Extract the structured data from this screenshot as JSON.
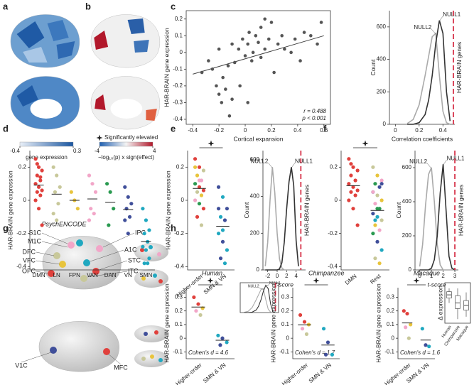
{
  "panels": [
    "a",
    "b",
    "c",
    "d",
    "e",
    "f",
    "g",
    "h"
  ],
  "colorbars": [
    {
      "ticks": [
        -0.4,
        0.3
      ],
      "label": "gene expression"
    },
    {
      "ticks": [
        -4,
        4
      ],
      "label": "−log₁₀(p) x sign(effect)"
    }
  ],
  "g": {
    "title": "PsychENCODE",
    "regions": [
      "S1C",
      "M1C",
      "DFC",
      "VFC",
      "OFC",
      "IPC",
      "A1C",
      "STC",
      "ITC",
      "V1C",
      "MFC"
    ]
  },
  "chart_data": [
    {
      "type": "scatter",
      "xlabel": "Cortical expansion",
      "ylabel": "HAR-BRAIN gene expression",
      "color": "#555555",
      "x": [
        -0.33,
        -0.28,
        -0.25,
        -0.22,
        -0.2,
        -0.2,
        -0.18,
        -0.17,
        -0.15,
        -0.13,
        -0.12,
        -0.1,
        -0.08,
        -0.05,
        -0.04,
        -0.02,
        0,
        0.02,
        0.03,
        0.05,
        0.06,
        0.08,
        0.1,
        0.12,
        0.12,
        0.15,
        0.18,
        0.2,
        0.22,
        0.25,
        0.28,
        0.3,
        0.35,
        0.38,
        0.42,
        0.45,
        0.5,
        0.55,
        0.58,
        0.02,
        -0.1,
        0.15
      ],
      "values": [
        -0.12,
        -0.05,
        -0.1,
        -0.2,
        0.02,
        -0.25,
        -0.3,
        -0.15,
        -0.22,
        -0.08,
        -0.38,
        0.05,
        -0.06,
        0.02,
        -0.2,
        0.08,
        -0.02,
        0.05,
        0.12,
        -0.05,
        0,
        0.1,
        0.06,
        -0.03,
        0.15,
        0.02,
        0.08,
        0.18,
        -0.12,
        0.05,
        0.1,
        0.02,
        0,
        0.08,
        -0.05,
        0.12,
        0.1,
        0.05,
        0.18,
        -0.3,
        -0.28,
        0.2
      ],
      "xlim": [
        -0.45,
        0.65
      ],
      "xticks": [
        -0.4,
        -0.2,
        0,
        0.2,
        0.4,
        0.6
      ],
      "ylim": [
        -0.43,
        0.25
      ],
      "yticks": [
        -0.4,
        -0.3,
        -0.2,
        -0.1,
        0,
        0.1,
        0.2
      ],
      "frame": true,
      "trend": {
        "x": [
          -0.4,
          0.6
        ],
        "values": [
          -0.13,
          0.1
        ]
      },
      "annotations": [
        "r = 0.488",
        "p < 0.001"
      ],
      "annotation_position": "lower right"
    },
    {
      "type": "line",
      "xlabel": "Correlation coefficients",
      "ylabel": "Count",
      "x": [
        0.1,
        0.15,
        0.2,
        0.25,
        0.28,
        0.31,
        0.34,
        0.37,
        0.4,
        0.43,
        0.46
      ],
      "series": [
        {
          "name": "NULL2",
          "color": "#aaaaaa",
          "values": [
            5,
            30,
            120,
            300,
            420,
            540,
            560,
            300,
            80,
            10,
            0
          ]
        },
        {
          "name": "NULL1",
          "color": "#333333",
          "values": [
            0,
            0,
            10,
            60,
            150,
            300,
            500,
            640,
            560,
            200,
            20
          ]
        }
      ],
      "xlim": [
        -0.05,
        0.5
      ],
      "xticks": [
        0,
        0.2,
        0.4
      ],
      "ylim": [
        0,
        700
      ],
      "yticks": [
        0,
        200,
        400,
        600
      ],
      "reference_line": {
        "value": 0.488,
        "label": "HAR-BRAIN genes",
        "color": "#d6334a"
      }
    },
    {
      "type": "strip",
      "ylabel": "HAR-BRAIN gene expression",
      "ylim": [
        -0.42,
        0.3
      ],
      "yticks": [
        -0.4,
        -0.2,
        0,
        0.2
      ],
      "legend": "Significantly elevated",
      "groups": [
        {
          "name": "DMN",
          "colors": [
            "#e0403c"
          ],
          "values": [
            0.25,
            0.2,
            0.18,
            0.15,
            0.12,
            0.1,
            0.08,
            0.06,
            0.05,
            0.03,
            0,
            -0.05,
            -0.15,
            0.22,
            0.14
          ]
        },
        {
          "name": "LN",
          "colors": [
            "#c8c89a"
          ],
          "values": [
            0.2,
            0.15,
            0.08,
            0.05,
            -0.02,
            -0.08,
            -0.12
          ]
        },
        {
          "name": "FPN",
          "colors": [
            "#e8c43c"
          ],
          "values": [
            0.05,
            0,
            -0.05
          ]
        },
        {
          "name": "VAN",
          "colors": [
            "#f2a6c8"
          ],
          "values": [
            0.15,
            0.1,
            0.05,
            -0.05,
            -0.08,
            -0.12
          ]
        },
        {
          "name": "DAN",
          "colors": [
            "#2a9a50"
          ],
          "values": [
            0.1,
            0.05,
            -0.05,
            -0.15
          ]
        },
        {
          "name": "VN",
          "colors": [
            "#404f9a"
          ],
          "values": [
            0.08,
            0.02,
            -0.02,
            -0.05,
            -0.1,
            -0.12,
            -0.2
          ]
        },
        {
          "name": "SMN",
          "colors": [
            "#20a8c0"
          ],
          "values": [
            -0.05,
            -0.12,
            -0.18,
            -0.2,
            -0.25,
            -0.28,
            -0.3,
            -0.35,
            -0.38,
            -0.38
          ]
        }
      ]
    },
    {
      "type": "strip",
      "ylabel": "HAR-BRAIN gene expression",
      "ylim": [
        -0.42,
        0.3
      ],
      "yticks": [
        -0.4,
        -0.2,
        0,
        0.2
      ],
      "significance": true,
      "groups": [
        {
          "name": "Higher-order",
          "colors": [
            "#e0403c",
            "#e0403c",
            "#c8c89a",
            "#e8c43c",
            "#f2a6c8",
            "#2a9a50"
          ],
          "values": [
            0.25,
            0.2,
            0.18,
            0.15,
            0.12,
            0.1,
            0.08,
            0.06,
            0.05,
            0.03,
            0,
            -0.02,
            -0.05,
            -0.1,
            -0.15,
            0.2,
            0.12
          ]
        },
        {
          "name": "SMN & VN",
          "colors": [
            "#404f9a",
            "#20a8c0"
          ],
          "values": [
            0.08,
            0.02,
            -0.05,
            -0.1,
            -0.12,
            -0.2,
            -0.25,
            -0.3,
            -0.35,
            -0.38,
            -0.05,
            -0.18
          ]
        }
      ]
    },
    {
      "type": "line",
      "xlabel": "t-score",
      "ylabel": "Count",
      "x": [
        -2.5,
        -2,
        -1.5,
        -1,
        -0.5,
        0,
        0.5,
        1,
        1.5,
        2,
        2.5,
        3,
        3.5,
        4,
        4.5
      ],
      "series": [
        {
          "name": "NULL2",
          "color": "#aaaaaa",
          "values": [
            20,
            150,
            380,
            560,
            420,
            200,
            60,
            10,
            0,
            0,
            0,
            0,
            0,
            0,
            0
          ]
        },
        {
          "name": "NULL1",
          "color": "#333333",
          "values": [
            0,
            0,
            0,
            0,
            0,
            0,
            5,
            40,
            150,
            330,
            480,
            560,
            460,
            160,
            20
          ]
        }
      ],
      "xlim": [
        -3,
        6
      ],
      "xticks": [
        -2,
        0,
        2,
        4
      ],
      "ylim": [
        0,
        650
      ],
      "yticks": [
        0,
        200,
        400,
        600
      ],
      "reference_line": {
        "value": 5,
        "label": "HAR-BRAIN genes",
        "color": "#d6334a"
      }
    },
    {
      "type": "strip",
      "ylim": [
        -0.42,
        0.3
      ],
      "yticks": [
        -0.4,
        -0.2,
        0,
        0.2
      ],
      "significance": true,
      "groups": [
        {
          "name": "DMN",
          "colors": [
            "#e0403c"
          ],
          "values": [
            0.25,
            0.2,
            0.18,
            0.15,
            0.12,
            0.1,
            0.08,
            0.06,
            0.05,
            0.03,
            0,
            -0.05,
            -0.15,
            0.22
          ]
        },
        {
          "name": "Rest",
          "colors": [
            "#c8c89a",
            "#e8c43c",
            "#f2a6c8",
            "#2a9a50",
            "#404f9a",
            "#20a8c0"
          ],
          "values": [
            0.2,
            0.15,
            0.12,
            0.1,
            0.08,
            0.05,
            0.03,
            0,
            -0.02,
            -0.05,
            -0.08,
            -0.1,
            -0.12,
            -0.15,
            -0.18,
            -0.2,
            -0.25,
            -0.3,
            -0.35,
            -0.38,
            0.05,
            -0.05,
            0.1,
            -0.12
          ]
        }
      ]
    },
    {
      "type": "line",
      "xlabel": "t-score",
      "ylabel": "Count",
      "x": [
        0,
        0.25,
        0.5,
        0.75,
        1,
        1.25,
        1.5,
        1.75,
        2,
        2.25,
        2.5,
        2.75,
        3
      ],
      "series": [
        {
          "name": "NULL2",
          "color": "#aaaaaa",
          "values": [
            20,
            150,
            380,
            560,
            600,
            400,
            150,
            30,
            0,
            0,
            0,
            0,
            0
          ]
        },
        {
          "name": "NULL1",
          "color": "#333333",
          "values": [
            0,
            0,
            0,
            0,
            10,
            60,
            200,
            450,
            620,
            350,
            80,
            10,
            0
          ]
        }
      ],
      "xlim": [
        -0.4,
        3.3
      ],
      "xticks": [
        0,
        1,
        2,
        3
      ],
      "ylim": [
        0,
        700
      ],
      "yticks": [
        0,
        200,
        400,
        600
      ],
      "reference_line": {
        "value": 3,
        "label": "HAR-BRAIN genes",
        "color": "#d6334a"
      }
    },
    {
      "type": "strip",
      "title": "Human",
      "ylabel": "HAR-BRAIN gene expression",
      "ylim": [
        -0.15,
        0.37
      ],
      "yticks": [
        -0.1,
        0,
        0.1,
        0.2,
        0.3
      ],
      "significance": true,
      "groups": [
        {
          "name": "Higher-order",
          "colors": [
            "#e0403c",
            "#e0403c",
            "#e8c43c",
            "#f2a6c8",
            "#c8c89a"
          ],
          "values": [
            0.3,
            0.25,
            0.22,
            0.2,
            0.17
          ]
        },
        {
          "name": "SMN & VN",
          "colors": [
            "#20a8c0",
            "#404f9a"
          ],
          "values": [
            0.02,
            0,
            -0.03,
            -0.05
          ]
        }
      ],
      "annotations": [
        "Cohen's d = 4.6"
      ],
      "annotation_position": "lower left"
    },
    {
      "type": "line",
      "x": [
        0.1,
        0.15,
        0.2,
        0.25,
        0.28,
        0.31,
        0.34,
        0.37,
        0.4,
        0.43,
        0.46
      ],
      "series": [
        {
          "name": "NULL2",
          "color": "#aaaaaa",
          "values": [
            5,
            30,
            120,
            300,
            420,
            540,
            560,
            300,
            80,
            10,
            0
          ]
        },
        {
          "name": "NULL1",
          "color": "#333333",
          "values": [
            0,
            0,
            10,
            60,
            150,
            300,
            500,
            640,
            560,
            200,
            20
          ]
        }
      ],
      "xlim": [
        0.05,
        0.53
      ],
      "ylim": [
        0,
        700
      ],
      "frame": true,
      "reference_line": {
        "value": 0.49,
        "color": "#d6334a"
      }
    },
    {
      "type": "strip",
      "title": "Chimpanzee",
      "ylabel": "HAR-BRAIN gene expression",
      "ylim": [
        -0.15,
        0.37
      ],
      "yticks": [
        -0.1,
        0,
        0.1,
        0.2,
        0.3
      ],
      "significance": true,
      "groups": [
        {
          "name": "Higher-order",
          "colors": [
            "#e0403c",
            "#e0403c",
            "#e8c43c",
            "#f2a6c8",
            "#c8c89a"
          ],
          "values": [
            0.17,
            0.12,
            0.1,
            0.07,
            0.03
          ]
        },
        {
          "name": "SMN & VN",
          "colors": [
            "#20a8c0",
            "#404f9a"
          ],
          "values": [
            0.07,
            -0.03,
            -0.12,
            -0.12
          ]
        }
      ],
      "annotations": [
        "Cohen's d = 1.7"
      ],
      "annotation_position": "lower left"
    },
    {
      "type": "strip",
      "title": "Macaque",
      "ylabel": "HAR-BRAIN gene expression",
      "ylim": [
        -0.15,
        0.37
      ],
      "yticks": [
        -0.1,
        0,
        0.1,
        0.2,
        0.3
      ],
      "significance": true,
      "groups": [
        {
          "name": "Higher-order",
          "colors": [
            "#e0403c",
            "#e0403c",
            "#e8c43c",
            "#f2a6c8",
            "#c8c89a"
          ],
          "values": [
            0.2,
            0.18,
            0.1,
            0.08,
            0
          ]
        },
        {
          "name": "SMN & VN",
          "colors": [
            "#20a8c0",
            "#404f9a"
          ],
          "values": [
            0.07,
            -0.05,
            -0.06
          ]
        }
      ],
      "annotations": [
        "Cohen's d = 1.6"
      ],
      "annotation_position": "lower left"
    },
    {
      "type": "box",
      "ylabel": "Δ expression",
      "categories": [
        "Human",
        "Chimpanzee",
        "Macaque"
      ],
      "stats": [
        [
          0.15,
          0.21,
          0.25,
          0.29,
          0.33
        ],
        [
          -0.05,
          0.08,
          0.15,
          0.24,
          0.33
        ],
        [
          -0.02,
          0.06,
          0.12,
          0.18,
          0.28
        ]
      ],
      "ylim": [
        -0.1,
        0.4
      ],
      "frame": true
    }
  ]
}
